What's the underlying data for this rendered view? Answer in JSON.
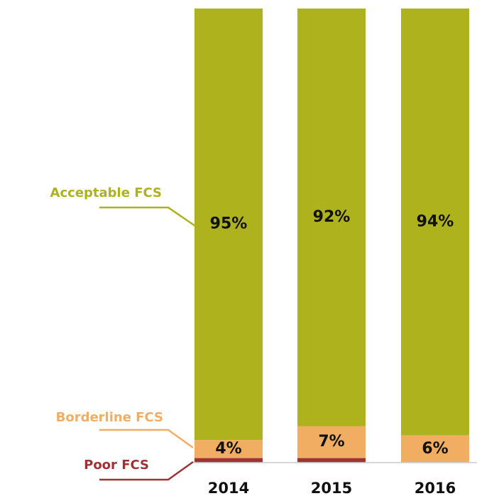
{
  "chart_data": {
    "type": "stacked_bar",
    "categories": [
      "2014",
      "2015",
      "2016"
    ],
    "series": [
      {
        "name": "Poor FCS",
        "color": "#9e3235",
        "values": [
          1,
          1,
          0
        ]
      },
      {
        "name": "Borderline FCS",
        "color": "#f1ae62",
        "values": [
          4,
          7,
          6
        ],
        "value_labels": [
          "4%",
          "7%",
          "6%"
        ]
      },
      {
        "name": "Acceptable FCS",
        "color": "#aeb21c",
        "values": [
          95,
          92,
          94
        ],
        "value_labels": [
          "95%",
          "92%",
          "94%"
        ]
      }
    ],
    "ylim": [
      0,
      100
    ]
  }
}
